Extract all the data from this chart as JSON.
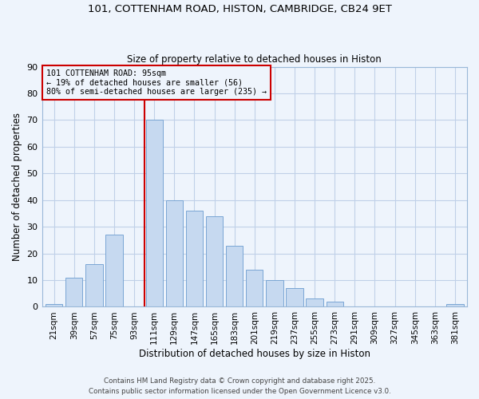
{
  "title": "101, COTTENHAM ROAD, HISTON, CAMBRIDGE, CB24 9ET",
  "subtitle": "Size of property relative to detached houses in Histon",
  "xlabel": "Distribution of detached houses by size in Histon",
  "ylabel": "Number of detached properties",
  "bar_labels": [
    "21sqm",
    "39sqm",
    "57sqm",
    "75sqm",
    "93sqm",
    "111sqm",
    "129sqm",
    "147sqm",
    "165sqm",
    "183sqm",
    "201sqm",
    "219sqm",
    "237sqm",
    "255sqm",
    "273sqm",
    "291sqm",
    "309sqm",
    "327sqm",
    "345sqm",
    "363sqm",
    "381sqm"
  ],
  "bar_values": [
    1,
    11,
    16,
    27,
    0,
    70,
    40,
    36,
    34,
    23,
    14,
    10,
    7,
    3,
    2,
    0,
    0,
    0,
    0,
    0,
    1
  ],
  "bar_color": "#c6d9f0",
  "bar_edge_color": "#7aa6d4",
  "grid_color": "#c0d0e8",
  "background_color": "#eef4fc",
  "vline_x": 4.5,
  "vline_color": "#cc0000",
  "annotation_text": "101 COTTENHAM ROAD: 95sqm\n← 19% of detached houses are smaller (56)\n80% of semi-detached houses are larger (235) →",
  "annotation_box_edgecolor": "#cc0000",
  "footnote1": "Contains HM Land Registry data © Crown copyright and database right 2025.",
  "footnote2": "Contains public sector information licensed under the Open Government Licence v3.0.",
  "ylim": [
    0,
    90
  ],
  "yticks": [
    0,
    10,
    20,
    30,
    40,
    50,
    60,
    70,
    80,
    90
  ]
}
